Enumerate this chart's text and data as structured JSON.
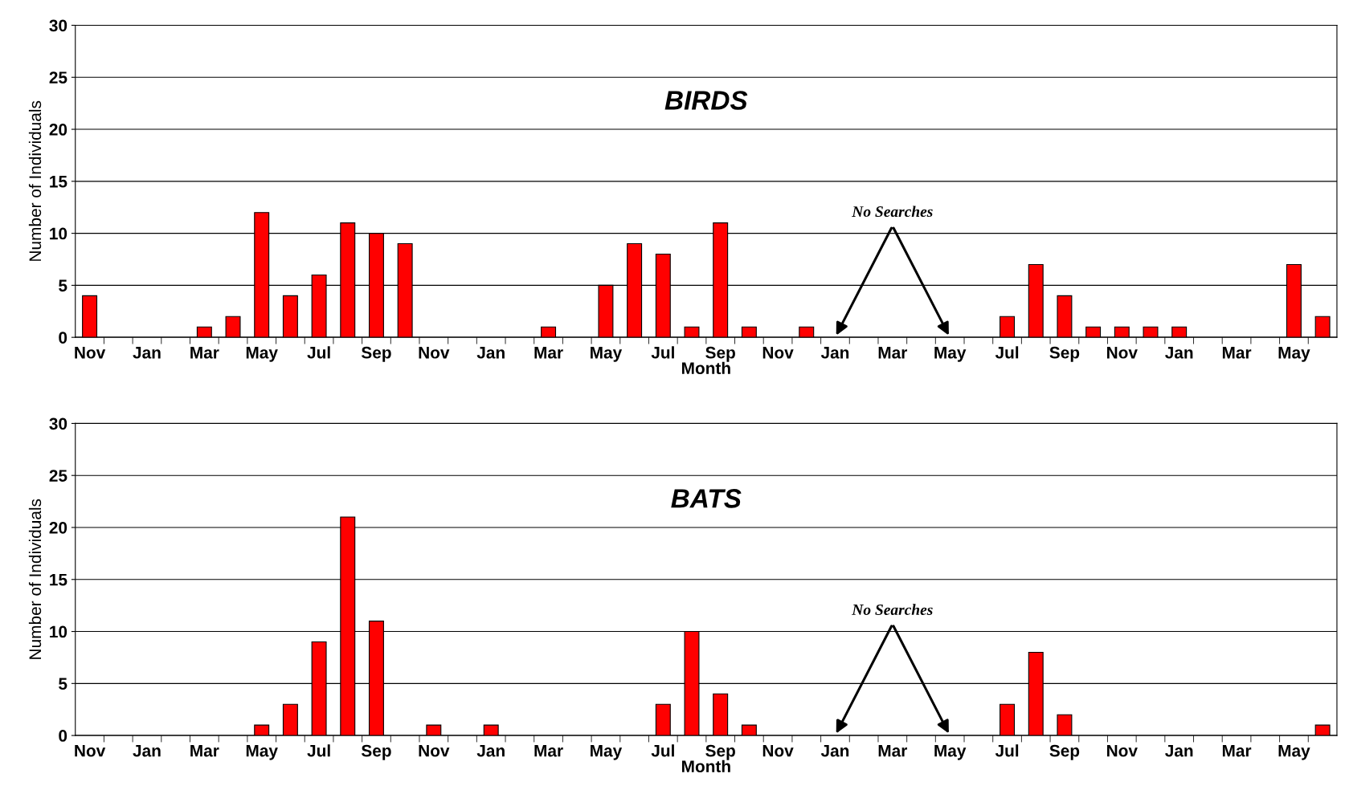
{
  "chart_data": [
    {
      "type": "bar",
      "title": "BIRDS",
      "xlabel": "Month",
      "ylabel": "Number of Individuals",
      "categories": [
        "Nov",
        null,
        "Jan",
        null,
        "Mar",
        null,
        "May",
        null,
        "Jul",
        null,
        "Sep",
        null,
        "Nov",
        null,
        "Jan",
        null,
        "Mar",
        null,
        "May",
        null,
        "Jul",
        null,
        "Sep",
        null,
        "Nov",
        null,
        "Jan",
        null,
        "Mar",
        null,
        "May",
        null,
        "Jul",
        null,
        "Sep",
        null,
        "Nov",
        null,
        "Jan",
        null,
        "Mar",
        null,
        "May",
        null
      ],
      "series": [
        {
          "color": "#ff0000",
          "values": [
            4,
            0,
            0,
            0,
            1,
            2,
            12,
            4,
            6,
            11,
            10,
            9,
            0,
            0,
            0,
            0,
            1,
            0,
            5,
            9,
            8,
            1,
            11,
            1,
            0,
            1,
            null,
            null,
            null,
            null,
            null,
            0,
            2,
            7,
            4,
            1,
            1,
            1,
            1,
            0,
            0,
            0,
            7,
            2
          ]
        }
      ],
      "annotations": [
        "No Searches"
      ],
      "ylim": [
        0,
        30
      ],
      "yticks": [
        0,
        5,
        10,
        15,
        20,
        25,
        30
      ],
      "grid": "y",
      "legend": false
    },
    {
      "type": "bar",
      "title": "BATS",
      "xlabel": "Month",
      "ylabel": "Number of Individuals",
      "categories": [
        "Nov",
        null,
        "Jan",
        null,
        "Mar",
        null,
        "May",
        null,
        "Jul",
        null,
        "Sep",
        null,
        "Nov",
        null,
        "Jan",
        null,
        "Mar",
        null,
        "May",
        null,
        "Jul",
        null,
        "Sep",
        null,
        "Nov",
        null,
        "Jan",
        null,
        "Mar",
        null,
        "May",
        null,
        "Jul",
        null,
        "Sep",
        null,
        "Nov",
        null,
        "Jan",
        null,
        "Mar",
        null,
        "May",
        null
      ],
      "series": [
        {
          "color": "#ff0000",
          "values": [
            0,
            0,
            0,
            0,
            0,
            0,
            1,
            3,
            9,
            21,
            11,
            0,
            1,
            0,
            1,
            0,
            0,
            0,
            0,
            0,
            3,
            10,
            4,
            1,
            0,
            0,
            null,
            null,
            null,
            null,
            null,
            0,
            3,
            8,
            2,
            0,
            0,
            0,
            0,
            0,
            0,
            0,
            0,
            1
          ]
        }
      ],
      "annotations": [
        "No Searches"
      ],
      "ylim": [
        0,
        30
      ],
      "yticks": [
        0,
        5,
        10,
        15,
        20,
        25,
        30
      ],
      "grid": "y",
      "legend": false
    }
  ]
}
